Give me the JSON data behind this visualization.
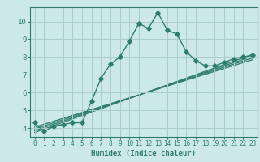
{
  "main_x": [
    0,
    1,
    2,
    3,
    4,
    5,
    6,
    7,
    8,
    9,
    10,
    11,
    12,
    13,
    14,
    15,
    16,
    17,
    18,
    19,
    20,
    21,
    22,
    23
  ],
  "main_y": [
    4.3,
    3.8,
    4.1,
    4.2,
    4.3,
    4.3,
    5.5,
    6.8,
    7.6,
    8.0,
    8.9,
    9.9,
    9.6,
    10.5,
    9.5,
    9.3,
    8.3,
    7.8,
    7.5,
    7.5,
    7.7,
    7.9,
    8.0,
    8.1
  ],
  "reg_lines": [
    {
      "x": [
        0,
        23
      ],
      "y": [
        4.05,
        7.85
      ]
    },
    {
      "x": [
        0,
        23
      ],
      "y": [
        3.95,
        7.95
      ]
    },
    {
      "x": [
        0,
        23
      ],
      "y": [
        3.85,
        8.05
      ]
    },
    {
      "x": [
        0,
        23
      ],
      "y": [
        3.75,
        8.15
      ]
    }
  ],
  "line_color": "#2d7d6e",
  "bg_color": "#cce8e8",
  "grid_color": "#aacccc",
  "xlim": [
    -0.5,
    23.5
  ],
  "ylim": [
    3.5,
    10.8
  ],
  "xlabel": "Humidex (Indice chaleur)",
  "xticks": [
    0,
    1,
    2,
    3,
    4,
    5,
    6,
    7,
    8,
    9,
    10,
    11,
    12,
    13,
    14,
    15,
    16,
    17,
    18,
    19,
    20,
    21,
    22,
    23
  ],
  "yticks": [
    4,
    5,
    6,
    7,
    8,
    9,
    10
  ],
  "marker": "D",
  "markersize": 2.8,
  "linewidth": 1.0,
  "reg_linewidth": 0.9,
  "xlabel_fontsize": 6.5,
  "tick_fontsize": 5.5,
  "ytick_fontsize": 6.5
}
